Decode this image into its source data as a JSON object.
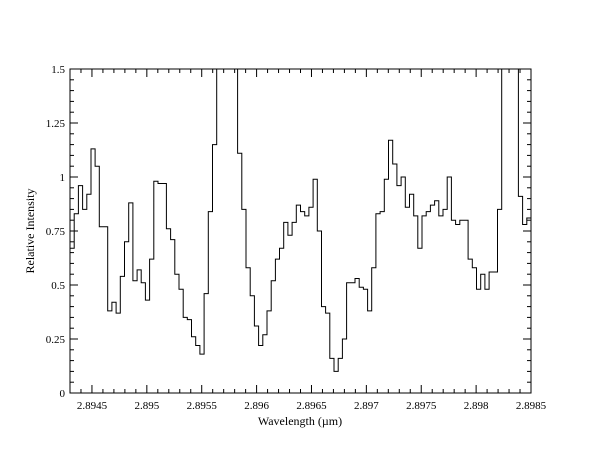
{
  "chart_data": {
    "type": "line",
    "style": "step",
    "title": "",
    "xlabel": "Wavelength  (µm)",
    "ylabel": "Relative Intensity",
    "xlim": [
      2.8943,
      2.8985
    ],
    "ylim": [
      0,
      1.5
    ],
    "grid": false,
    "legend": "none",
    "x_ticks": [
      {
        "v": 2.8945,
        "label": "2.8945"
      },
      {
        "v": 2.895,
        "label": "2.895"
      },
      {
        "v": 2.8955,
        "label": "2.8955"
      },
      {
        "v": 2.896,
        "label": "2.896"
      },
      {
        "v": 2.8965,
        "label": "2.8965"
      },
      {
        "v": 2.897,
        "label": "2.897"
      },
      {
        "v": 2.8975,
        "label": "2.8975"
      },
      {
        "v": 2.898,
        "label": "2.898"
      },
      {
        "v": 2.8985,
        "label": "2.8985"
      }
    ],
    "y_ticks": [
      {
        "v": 0,
        "label": "0"
      },
      {
        "v": 0.25,
        "label": "0.25"
      },
      {
        "v": 0.5,
        "label": "0.5"
      },
      {
        "v": 0.75,
        "label": "0.75"
      },
      {
        "v": 1,
        "label": "1"
      },
      {
        "v": 1.25,
        "label": "1.25"
      },
      {
        "v": 1.5,
        "label": "1.5"
      }
    ],
    "series": [
      {
        "color": "#000000",
        "values": [
          0.67,
          0.83,
          0.96,
          0.85,
          0.92,
          1.13,
          1.05,
          0.77,
          0.77,
          0.38,
          0.42,
          0.37,
          0.54,
          0.7,
          0.88,
          0.52,
          0.57,
          0.51,
          0.43,
          0.62,
          0.98,
          0.97,
          0.97,
          0.76,
          0.71,
          0.55,
          0.48,
          0.35,
          0.34,
          0.26,
          0.22,
          0.18,
          0.46,
          0.84,
          1.15,
          1.6,
          1.6,
          1.6,
          1.6,
          1.6,
          1.11,
          0.85,
          0.58,
          0.45,
          0.31,
          0.22,
          0.27,
          0.38,
          0.52,
          0.62,
          0.67,
          0.79,
          0.73,
          0.79,
          0.87,
          0.84,
          0.82,
          0.86,
          0.99,
          0.75,
          0.4,
          0.37,
          0.16,
          0.1,
          0.16,
          0.25,
          0.51,
          0.51,
          0.53,
          0.49,
          0.48,
          0.38,
          0.58,
          0.83,
          0.84,
          0.99,
          1.17,
          1.06,
          0.96,
          1.0,
          0.86,
          0.92,
          0.82,
          0.67,
          0.82,
          0.84,
          0.87,
          0.89,
          0.82,
          0.85,
          1.0,
          0.8,
          0.78,
          0.8,
          0.8,
          0.62,
          0.58,
          0.48,
          0.55,
          0.48,
          0.56,
          0.56,
          0.85,
          1.5,
          1.5,
          1.6,
          1.6,
          0.91,
          0.78,
          0.81
        ]
      }
    ]
  }
}
